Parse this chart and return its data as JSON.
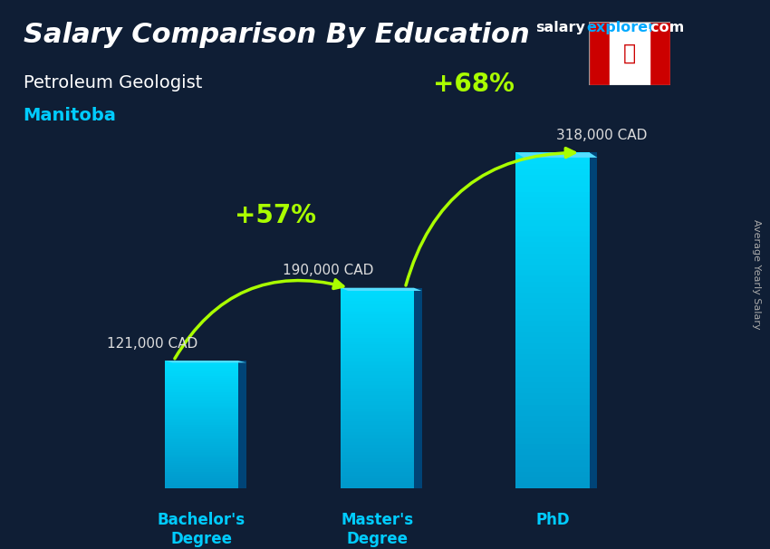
{
  "title_line1": "Salary Comparison By Education",
  "subtitle1": "Petroleum Geologist",
  "subtitle2": "Manitoba",
  "categories": [
    "Bachelor's\nDegree",
    "Master's\nDegree",
    "PhD"
  ],
  "values": [
    121000,
    190000,
    318000
  ],
  "value_labels": [
    "121,000 CAD",
    "190,000 CAD",
    "318,000 CAD"
  ],
  "pct_labels": [
    "+57%",
    "+68%"
  ],
  "arrow_color": "#aaff00",
  "title_color": "#ffffff",
  "subtitle2_color": "#00ccff",
  "label_color": "#dddddd",
  "cat_label_color": "#00ccff",
  "site_salary_color": "#ffffff",
  "site_explorer_color": "#00aaff",
  "site_com_color": "#ffffff",
  "side_label": "Average Yearly Salary",
  "ylim_max": 400000,
  "bar_width": 0.42,
  "fig_bg": "#0f1e35"
}
